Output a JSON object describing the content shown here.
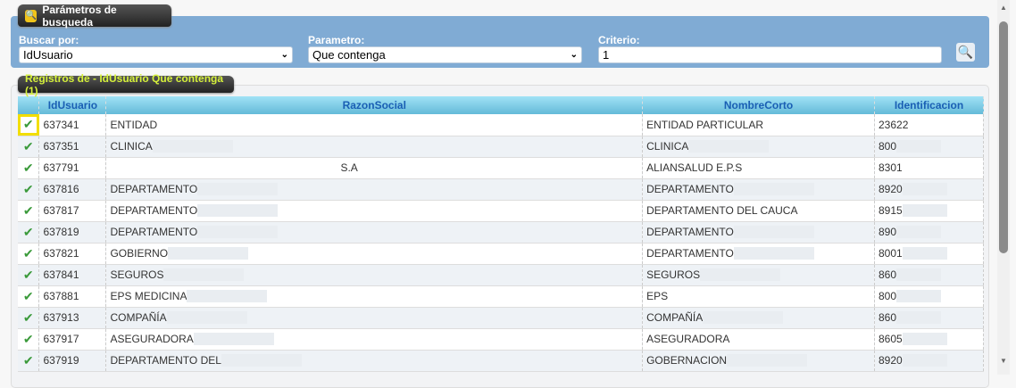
{
  "search": {
    "tab_title": "Parámetros de busqueda",
    "buscar_label": "Buscar por:",
    "buscar_value": "IdUsuario",
    "parametro_label": "Parametro:",
    "parametro_value": "Que contenga",
    "criterio_label": "Criterio:",
    "criterio_value": "1"
  },
  "results": {
    "tab_title": "Registros de - IdUsuario Que contenga (1)",
    "columns": [
      "",
      "IdUsuario",
      "RazonSocial",
      "NombreCorto",
      "Identificacion"
    ],
    "rows": [
      {
        "id": "637341",
        "razon": "ENTIDAD",
        "corto": "ENTIDAD PARTICULAR",
        "ident": "23622"
      },
      {
        "id": "637351",
        "razon": "CLINICA",
        "corto": "CLINICA",
        "ident": "800"
      },
      {
        "id": "637791",
        "razon": "S.A",
        "corto": "ALIANSALUD E.P.S",
        "ident": "8301"
      },
      {
        "id": "637816",
        "razon": "DEPARTAMENTO",
        "corto": "DEPARTAMENTO",
        "ident": "8920"
      },
      {
        "id": "637817",
        "razon": "DEPARTAMENTO",
        "corto": "DEPARTAMENTO DEL CAUCA",
        "ident": "8915"
      },
      {
        "id": "637819",
        "razon": "DEPARTAMENTO",
        "corto": "DEPARTAMENTO",
        "ident": "890"
      },
      {
        "id": "637821",
        "razon": "GOBIERNO",
        "corto": "DEPARTAMENTO",
        "ident": "8001"
      },
      {
        "id": "637841",
        "razon": "SEGUROS",
        "corto": "SEGUROS",
        "ident": "860"
      },
      {
        "id": "637881",
        "razon": "EPS MEDICINA",
        "corto": "EPS",
        "ident": "800"
      },
      {
        "id": "637913",
        "razon": "COMPAÑÍA",
        "corto": "COMPAÑÍA",
        "ident": "860"
      },
      {
        "id": "637917",
        "razon": "ASEGURADORA",
        "corto": "ASEGURADORA",
        "ident": "8605"
      },
      {
        "id": "637919",
        "razon": "DEPARTAMENTO DEL",
        "corto": "GOBERNACION",
        "ident": "8920"
      }
    ]
  }
}
